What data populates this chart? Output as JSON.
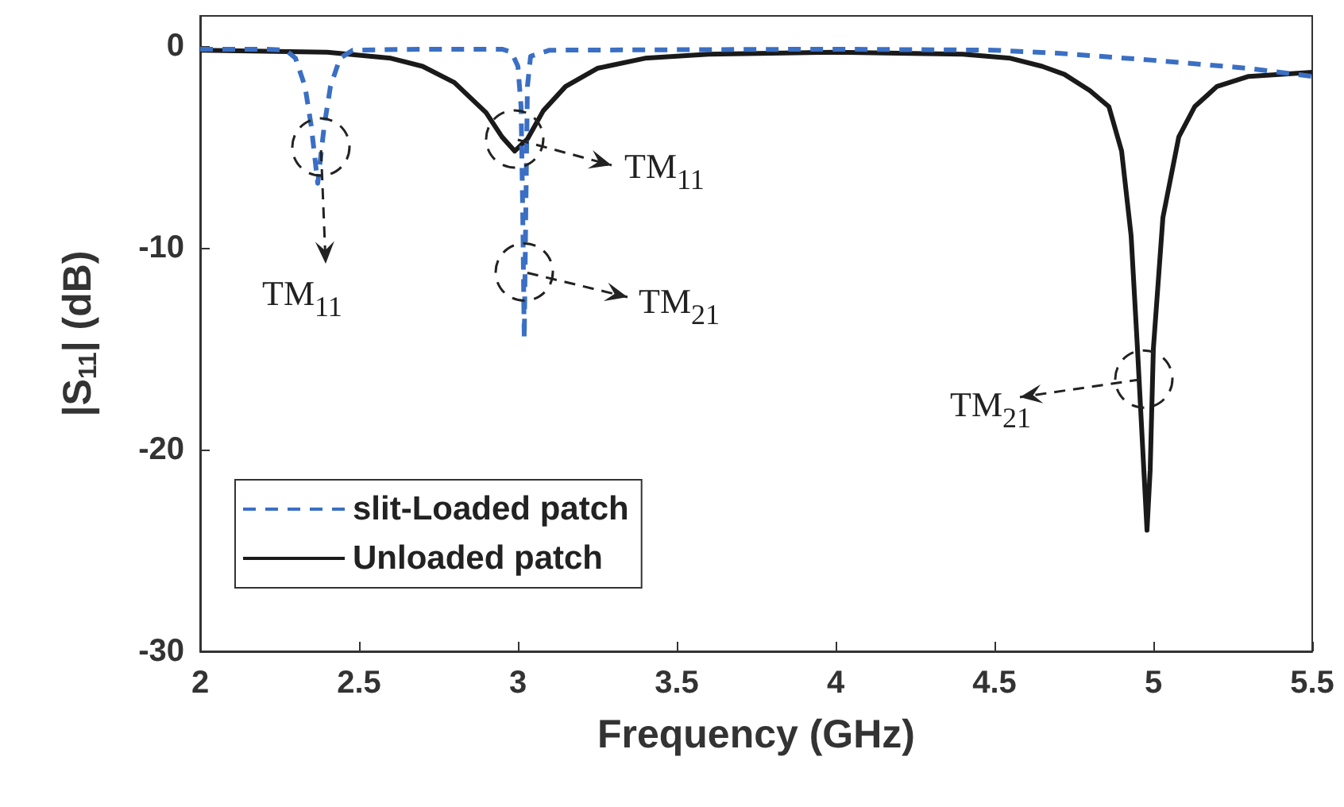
{
  "chart_data": {
    "type": "line",
    "xlabel": "Frequency (GHz)",
    "ylabel": "|S$_{11}$| (dB)",
    "xlim": [
      2,
      5.5
    ],
    "xticks": [
      2,
      2.5,
      3,
      3.5,
      4,
      4.5,
      5,
      5.5
    ],
    "ylim": [
      -30,
      1.5
    ],
    "yticks": [
      -30,
      -20,
      -10,
      0
    ],
    "grid": false,
    "legend": "bottom left",
    "marker": "none",
    "series": [
      {
        "name": "slit-Loaded patch",
        "color": "#3a6fc4",
        "line_style": "dashed",
        "x": [
          2.0,
          2.2,
          2.27,
          2.3,
          2.33,
          2.35,
          2.37,
          2.39,
          2.41,
          2.44,
          2.48,
          2.7,
          2.95,
          2.98,
          3.0,
          3.01,
          3.015,
          3.02,
          3.025,
          3.03,
          3.04,
          3.1,
          4.0,
          4.5,
          4.7,
          5.0,
          5.3,
          5.5
        ],
        "values": [
          -0.15,
          -0.15,
          -0.2,
          -0.6,
          -2,
          -4,
          -6.8,
          -4,
          -2,
          -0.6,
          -0.2,
          -0.15,
          -0.15,
          -0.3,
          -1,
          -3,
          -8,
          -14.5,
          -8,
          -2,
          -0.5,
          -0.2,
          -0.15,
          -0.2,
          -0.35,
          -0.7,
          -1.1,
          -1.5
        ]
      },
      {
        "name": "Unloaded patch",
        "color": "#1a1a1a",
        "line_style": "solid",
        "x": [
          2.0,
          2.4,
          2.6,
          2.7,
          2.8,
          2.9,
          2.95,
          2.99,
          3.03,
          3.08,
          3.15,
          3.25,
          3.4,
          3.6,
          4.0,
          4.4,
          4.55,
          4.65,
          4.72,
          4.8,
          4.86,
          4.9,
          4.93,
          4.95,
          4.97,
          4.98,
          4.99,
          5.0,
          5.03,
          5.08,
          5.13,
          5.2,
          5.3,
          5.5
        ],
        "values": [
          -0.2,
          -0.3,
          -0.6,
          -1,
          -1.8,
          -3.3,
          -4.5,
          -5.2,
          -4.6,
          -3.2,
          -2,
          -1.1,
          -0.6,
          -0.4,
          -0.3,
          -0.4,
          -0.6,
          -1,
          -1.4,
          -2.2,
          -3,
          -5.2,
          -9.4,
          -15,
          -21,
          -24,
          -21,
          -15,
          -8.5,
          -4.5,
          -3,
          -2,
          -1.5,
          -1.3
        ]
      }
    ],
    "annotations": [
      {
        "text": "TM$_{11}$",
        "x": 2.38,
        "y": -5
      },
      {
        "text": "TM$_{11}$",
        "x": 2.99,
        "y": -4.6
      },
      {
        "text": "TM$_{21}$",
        "x": 3.02,
        "y": -11.2
      },
      {
        "text": "TM$_{21}$",
        "x": 4.97,
        "y": -16.5
      }
    ]
  }
}
